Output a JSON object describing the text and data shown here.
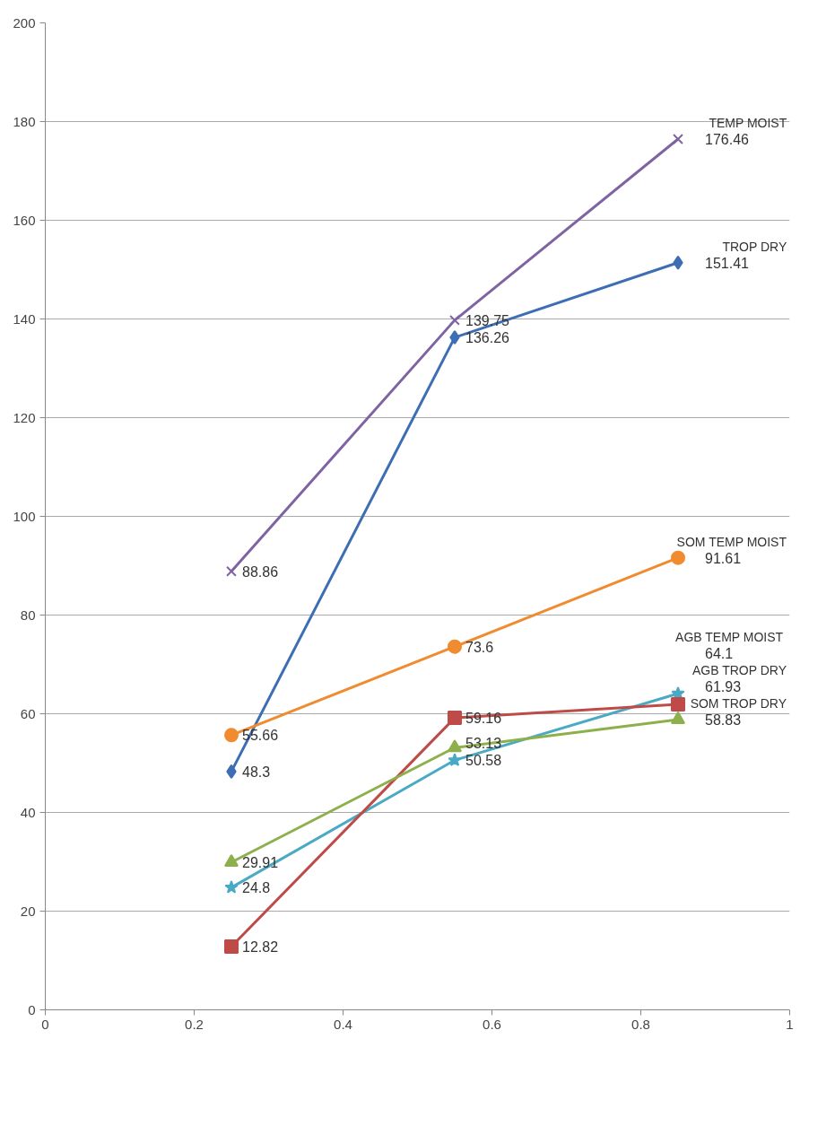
{
  "chart_data": {
    "type": "line",
    "x": [
      0.25,
      0.55,
      0.85
    ],
    "series": [
      {
        "name": "TEMP MOIST",
        "color": "#7f63a2",
        "marker": "cross",
        "values": [
          88.86,
          139.75,
          176.46
        ]
      },
      {
        "name": "TROP DRY",
        "color": "#3d6eb4",
        "marker": "diamond",
        "values": [
          48.3,
          136.26,
          151.41
        ]
      },
      {
        "name": "SOM TEMP MOIST",
        "color": "#f08b30",
        "marker": "circle",
        "values": [
          55.66,
          73.6,
          91.61
        ]
      },
      {
        "name": "AGB  TEMP MOIST",
        "color": "#4aaac5",
        "marker": "star",
        "values": [
          24.8,
          50.58,
          64.1
        ]
      },
      {
        "name": "AGB TROP DRY",
        "color": "#be4b48",
        "marker": "square",
        "values": [
          12.82,
          59.16,
          61.93
        ]
      },
      {
        "name": "SOM TROP DRY",
        "color": "#8db04c",
        "marker": "triangle",
        "values": [
          29.91,
          53.13,
          58.83
        ]
      }
    ],
    "xlim": [
      0,
      1
    ],
    "xticks": [
      0,
      0.2,
      0.4,
      0.6,
      0.8,
      1
    ],
    "ylim": [
      0,
      200
    ],
    "yticks": [
      0,
      20,
      40,
      60,
      80,
      100,
      120,
      140,
      160,
      180,
      200
    ],
    "grid": "y",
    "data_labels": true,
    "legend": false
  }
}
